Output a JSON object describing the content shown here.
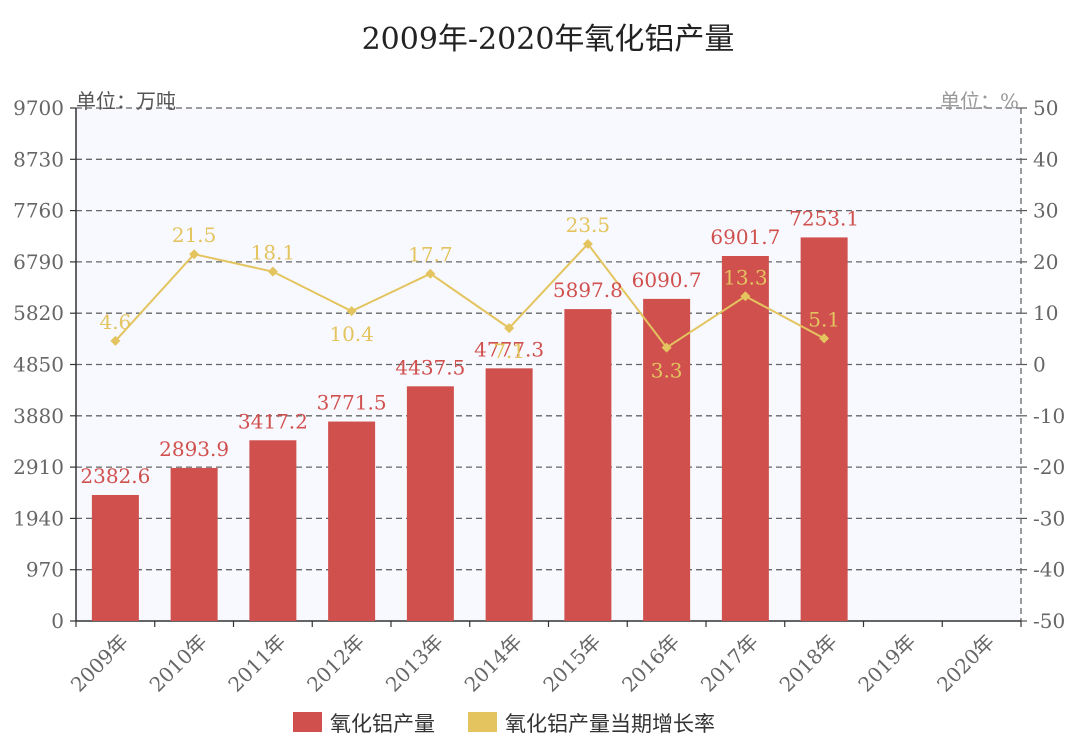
{
  "chart_data": {
    "type": "bar",
    "title": "2009年-2020年氧化铝产量",
    "categories": [
      "2009年",
      "2010年",
      "2011年",
      "2012年",
      "2013年",
      "2014年",
      "2015年",
      "2016年",
      "2017年",
      "2018年",
      "2019年",
      "2020年"
    ],
    "series": [
      {
        "name": "氧化铝产量",
        "type": "bar",
        "axis": "left",
        "color": "#d0504e",
        "values": [
          2382.6,
          2893.9,
          3417.2,
          3771.5,
          4437.5,
          4777.3,
          5897.8,
          6090.7,
          6901.7,
          7253.1,
          null,
          null
        ]
      },
      {
        "name": "氧化铝产量当期增长率",
        "type": "line",
        "axis": "right",
        "color": "#e3c45f",
        "values": [
          4.6,
          21.5,
          18.1,
          10.4,
          17.7,
          7.1,
          23.5,
          3.3,
          13.3,
          5.1,
          null,
          null
        ]
      }
    ],
    "y_left": {
      "unit": "单位：万吨",
      "ylim": [
        0,
        9700
      ],
      "ticks": [
        0,
        970,
        1940,
        2910,
        3880,
        4850,
        5820,
        6790,
        7760,
        8730,
        9700
      ]
    },
    "y_right": {
      "unit": "单位：%",
      "ylim": [
        -50,
        50
      ],
      "ticks": [
        -50,
        -40,
        -30,
        -20,
        -10,
        0,
        10,
        20,
        30,
        40,
        50
      ]
    },
    "legend": {
      "position": "bottom",
      "entries": [
        "氧化铝产量",
        "氧化铝产量当期增长率"
      ]
    },
    "grid": true
  }
}
